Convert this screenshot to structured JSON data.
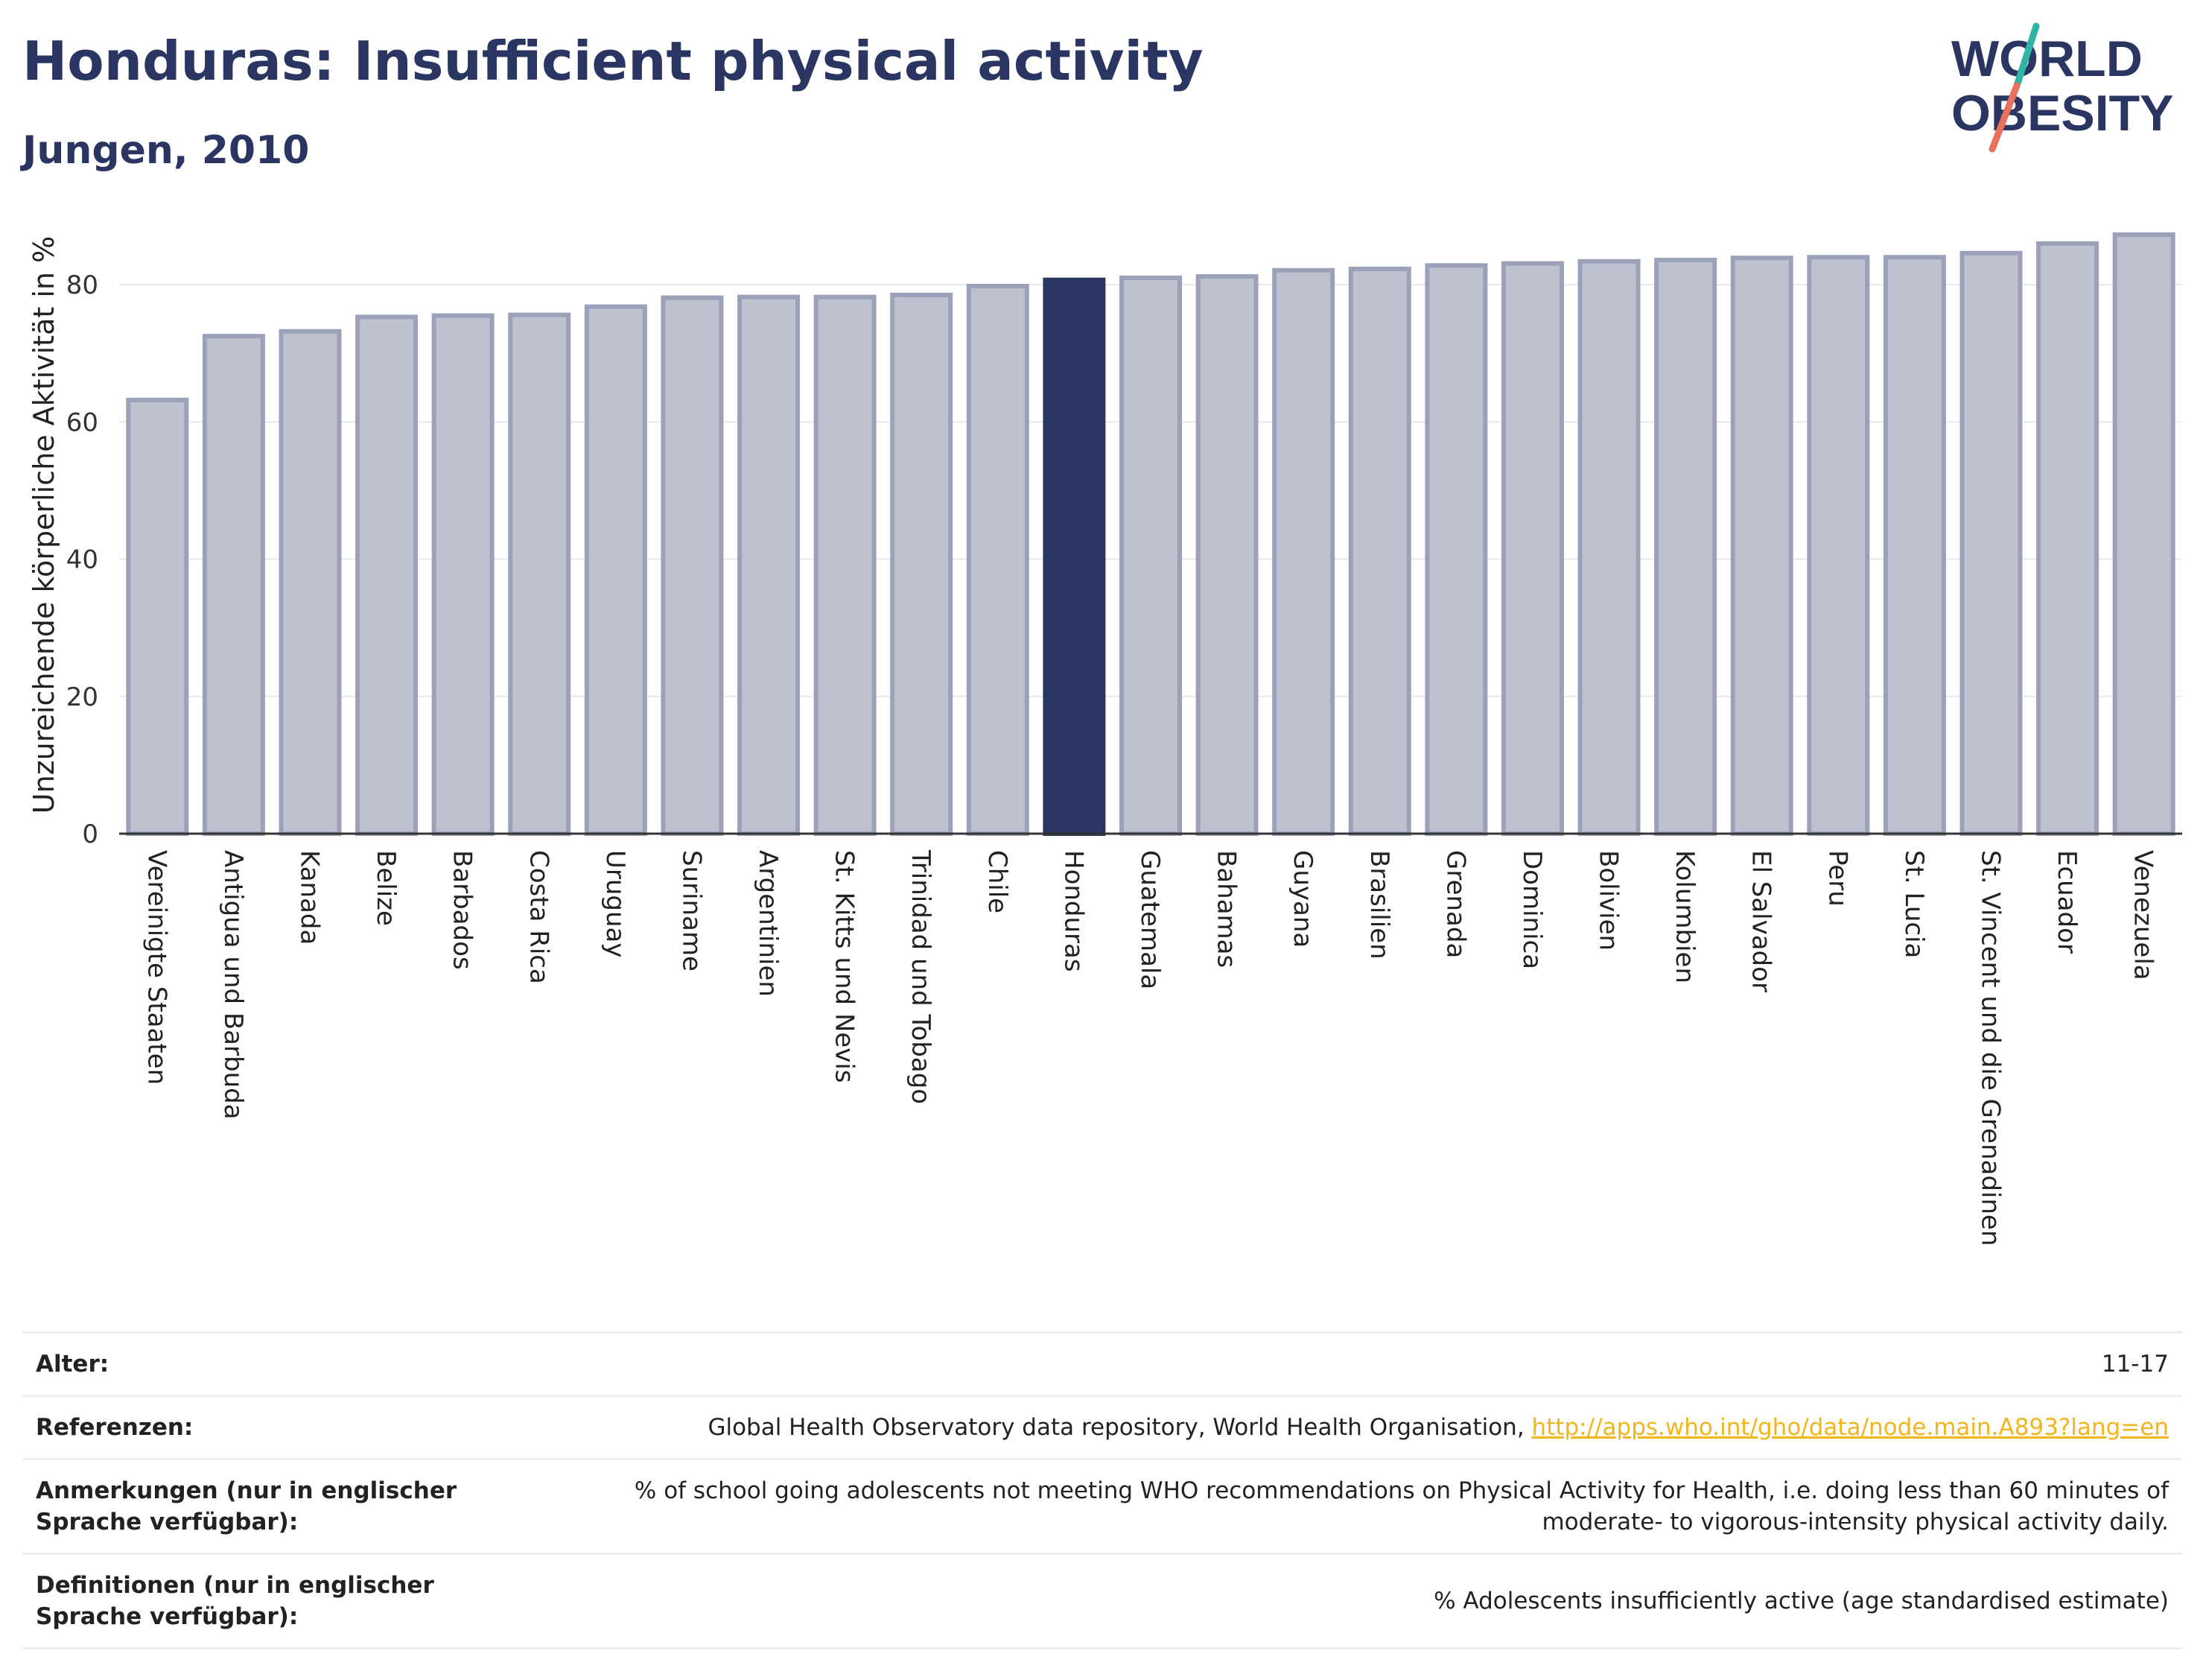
{
  "header": {
    "title": "Honduras: Insufficient physical activity",
    "subtitle": "Jungen, 2010"
  },
  "logo": {
    "line1": "WORLD",
    "line2": "OBESITY",
    "colors": {
      "text": "#2a3561",
      "slash_top": "#2fb5a5",
      "slash_bottom": "#e8705d"
    }
  },
  "chart_data": {
    "type": "bar",
    "ylabel": "Unzureichende körperliche Aktivität in %",
    "ylim": [
      0,
      90
    ],
    "yticks": [
      0,
      20,
      40,
      60,
      80
    ],
    "grid": true,
    "highlight": "Honduras",
    "colors": {
      "bar": "#bec2cf",
      "bar_edge": "#9aa1b8",
      "highlight": "#2a3561"
    },
    "categories": [
      "Vereinigte Staaten",
      "Antigua und Barbuda",
      "Kanada",
      "Belize",
      "Barbados",
      "Costa Rica",
      "Uruguay",
      "Suriname",
      "Argentinien",
      "St. Kitts und Nevis",
      "Trinidad und Tobago",
      "Chile",
      "Honduras",
      "Guatemala",
      "Bahamas",
      "Guyana",
      "Brasilien",
      "Grenada",
      "Dominica",
      "Bolivien",
      "Kolumbien",
      "El Salvador",
      "Peru",
      "St. Lucia",
      "St. Vincent und die Grenadinen",
      "Ecuador",
      "Venezuela"
    ],
    "values": [
      63.2,
      72.5,
      73.2,
      75.3,
      75.5,
      75.6,
      76.8,
      78.1,
      78.2,
      78.2,
      78.5,
      79.8,
      80.7,
      81.0,
      81.2,
      82.1,
      82.3,
      82.8,
      83.1,
      83.4,
      83.6,
      83.9,
      84.0,
      84.0,
      84.6,
      86.0,
      87.3
    ]
  },
  "footer": {
    "rows": [
      {
        "key": "Alter:",
        "value": "11-17"
      },
      {
        "key": "Referenzen:",
        "value": "Global Health Observatory data repository, World Health Organisation, ",
        "link": "http://apps.who.int/gho/data/node.main.A893?lang=en"
      },
      {
        "key": "Anmerkungen (nur in englischer Sprache verfügbar):",
        "value": "% of school going adolescents not meeting WHO recommendations on Physical Activity for Health, i.e. doing less than 60 minutes of moderate- to vigorous-intensity physical activity daily."
      },
      {
        "key": "Definitionen (nur in englischer Sprache verfügbar):",
        "value": "% Adolescents insufficiently active (age standardised estimate)"
      }
    ]
  }
}
